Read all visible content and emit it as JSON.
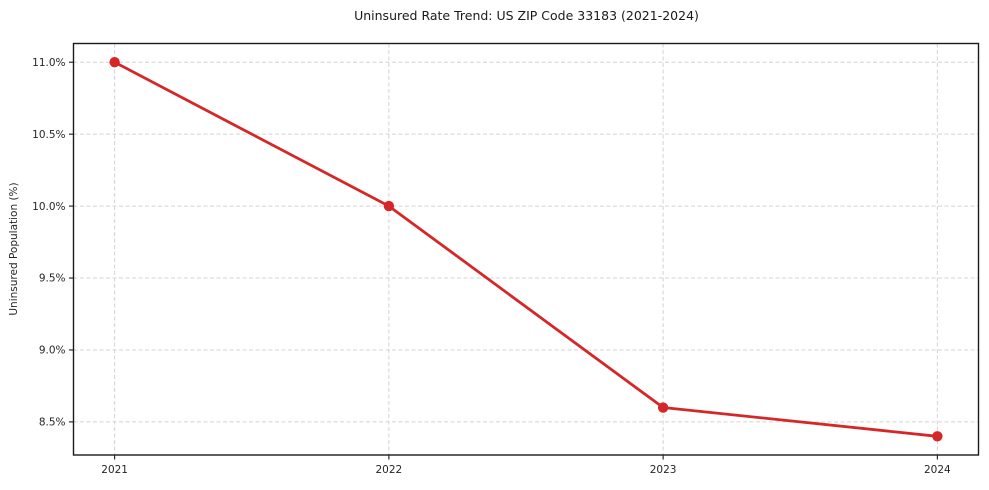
{
  "chart_data": {
    "type": "line",
    "title": "Uninsured Rate Trend: US ZIP Code 33183 (2021-2024)",
    "xlabel": "",
    "ylabel": "Uninsured Population (%)",
    "x": [
      2021,
      2022,
      2023,
      2024
    ],
    "xtick_labels": [
      "2021",
      "2022",
      "2023",
      "2024"
    ],
    "values": [
      11.0,
      10.0,
      8.6,
      8.4
    ],
    "yticks": [
      8.5,
      9.0,
      9.5,
      10.0,
      10.5,
      11.0
    ],
    "ytick_labels": [
      "8.5%",
      "9.0%",
      "9.5%",
      "10.0%",
      "10.5%",
      "11.0%"
    ],
    "xlim": [
      2020.85,
      2024.15
    ],
    "ylim": [
      8.27,
      11.13
    ],
    "grid": true,
    "grid_style": "dashed",
    "legend": false,
    "colors": {
      "line": "#d62728",
      "marker": "#d62728",
      "grid": "#d3d3d3",
      "spine": "#1a1a1a",
      "tick": "#1a1a1a",
      "text": "#262626",
      "background": "#ffffff"
    }
  }
}
